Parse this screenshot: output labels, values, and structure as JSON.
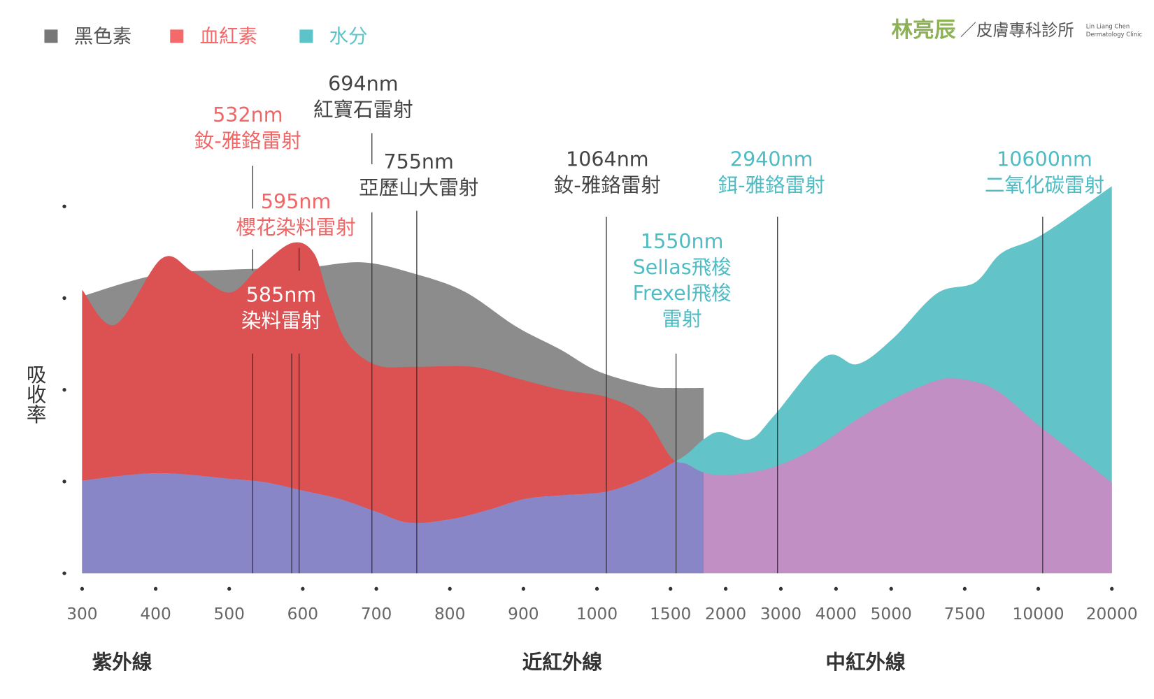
{
  "chart_data": {
    "type": "area",
    "y_label": "吸收率",
    "logo": {
      "name": "林亮辰",
      "clinic": "／皮膚專科診所",
      "en_name": "Lin Liang Chen",
      "en_clinic": "Dermatology Clinic",
      "color": "#8db255"
    },
    "xlim": [
      300,
      20000
    ],
    "xticks": [
      300,
      400,
      500,
      600,
      700,
      800,
      900,
      1000,
      1500,
      2000,
      3000,
      4000,
      5000,
      7500,
      10000,
      20000
    ],
    "ylim": [
      0,
      4.5
    ],
    "yticks": [
      0,
      1,
      2,
      3,
      4
    ],
    "regions": [
      "紫外線",
      "近紅外線",
      "中紅外線"
    ],
    "overlap_colors": [
      "#c18fc4",
      "#8986c8"
    ],
    "series": [
      {
        "name": "黑色素",
        "color": "#8c8c8c",
        "legend_color": "#777777",
        "x": [
          300,
          400,
          500,
          600,
          680,
          750,
          820,
          890,
          950,
          1010,
          1350,
          1500,
          1800
        ],
        "values": [
          3.02,
          3.25,
          3.31,
          3.33,
          3.39,
          3.27,
          3.07,
          2.69,
          2.44,
          2.2,
          2.04,
          2.02,
          2.02
        ]
      },
      {
        "name": "血紅素",
        "color": "#dc5151",
        "legend_color": "#f46a6a",
        "x": [
          300,
          345,
          408,
          450,
          500,
          540,
          585,
          615,
          635,
          660,
          700,
          752,
          832,
          893,
          952,
          1065,
          1315,
          1500,
          1650,
          1800,
          2000,
          2770,
          3580,
          4390,
          5190,
          6550,
          7300,
          8550,
          10250,
          20000
        ],
        "values": [
          3.09,
          2.71,
          3.43,
          3.29,
          3.06,
          3.33,
          3.6,
          3.49,
          3.01,
          2.52,
          2.27,
          2.25,
          2.25,
          2.12,
          2.0,
          1.92,
          1.72,
          1.27,
          1.19,
          1.1,
          1.07,
          1.14,
          1.35,
          1.68,
          1.92,
          2.1,
          2.12,
          2.0,
          1.6,
          0.99
        ]
      },
      {
        "name": "水分",
        "color": "#62c3c8",
        "legend_color": "#5cc4c8",
        "x": [
          300,
          400,
          500,
          550,
          600,
          650,
          700,
          745,
          802,
          852,
          902,
          952,
          1065,
          1315,
          1500,
          1650,
          1800,
          1950,
          2440,
          2880,
          3800,
          4390,
          5060,
          6550,
          7850,
          8750,
          10500,
          20000
        ],
        "values": [
          1.01,
          1.09,
          1.03,
          0.99,
          0.9,
          0.81,
          0.67,
          0.55,
          0.59,
          0.69,
          0.81,
          0.85,
          0.89,
          1.03,
          1.19,
          1.3,
          1.46,
          1.54,
          1.46,
          1.72,
          2.36,
          2.28,
          2.56,
          3.05,
          3.17,
          3.49,
          3.69,
          4.22
        ]
      }
    ],
    "annotations": [
      {
        "wavelength": 694,
        "label": [
          "694nm",
          "紅寶石雷射"
        ],
        "color": "#444444"
      },
      {
        "wavelength": 532,
        "label": [
          "532nm",
          "釹-雅鉻雷射"
        ],
        "color": "#f06666"
      },
      {
        "wavelength": 755,
        "label": [
          "755nm",
          "亞歷山大雷射"
        ],
        "color": "#444444"
      },
      {
        "wavelength": 595,
        "label": [
          "595nm",
          "櫻花染料雷射"
        ],
        "color": "#f06666"
      },
      {
        "wavelength": 585,
        "label": [
          "585nm",
          "染料雷射"
        ],
        "color": "#ffffff"
      },
      {
        "wavelength": 1064,
        "label": [
          "1064nm",
          "釹-雅鉻雷射"
        ],
        "color": "#444444"
      },
      {
        "wavelength": 2940,
        "label": [
          "2940nm",
          "鉺-雅鉻雷射"
        ],
        "color": "#4fbcc4"
      },
      {
        "wavelength": 10600,
        "label": [
          "10600nm",
          "二氧化碳雷射"
        ],
        "color": "#4fbcc4"
      },
      {
        "wavelength": 1550,
        "label": [
          "1550nm",
          "Sellas飛梭",
          "Frexel飛梭",
          "雷射"
        ],
        "color": "#4fbcc4"
      }
    ]
  }
}
